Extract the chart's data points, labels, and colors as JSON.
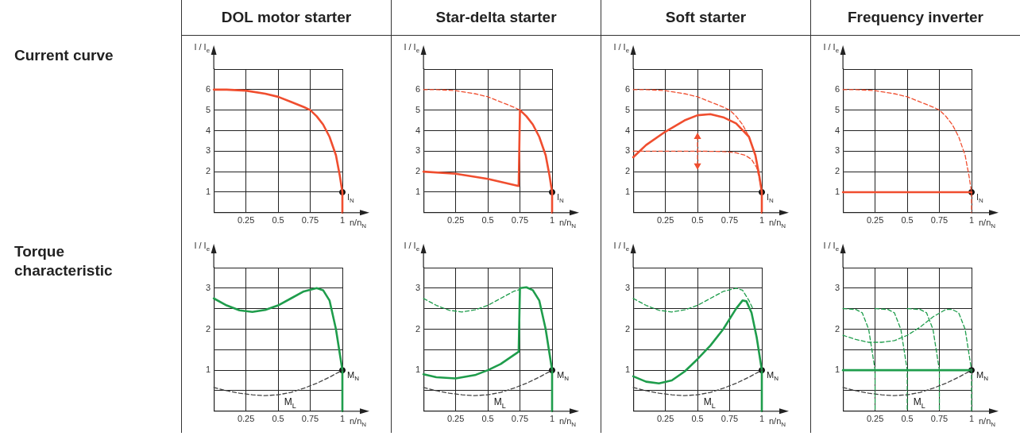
{
  "chart_data": [
    {
      "type": "other",
      "annotations": [
        "Current curve",
        "Torque characteristic"
      ]
    },
    {
      "type": "line",
      "title": "DOL motor starter",
      "xlabel": "n/n$_{N}$",
      "ylabel": "I / I$_{e}$",
      "xlim": [
        0,
        1
      ],
      "ylim": [
        0,
        7
      ],
      "xticks": [
        0.25,
        0.5,
        0.75,
        1
      ],
      "yticks": [
        1,
        2,
        3,
        4,
        5,
        6,
        {
          "value": 7,
          "label": null
        }
      ],
      "grid": true,
      "series": [
        {
          "color": "#f04e2f",
          "line_style": "solid",
          "x": [
            0,
            0.1,
            0.25,
            0.4,
            0.5,
            0.6,
            0.7,
            0.75,
            0.8,
            0.85,
            0.9,
            0.95,
            0.98,
            1,
            1
          ],
          "values": [
            6,
            6,
            5.95,
            5.8,
            5.65,
            5.4,
            5.15,
            5,
            4.7,
            4.3,
            3.7,
            2.8,
            1.8,
            1,
            0
          ]
        },
        {
          "type": "scatter",
          "name": "I$_{N}$",
          "color": "#111111",
          "marker": "circle",
          "x": [
            1
          ],
          "values": [
            1
          ]
        }
      ]
    },
    {
      "type": "line",
      "title": "Star-delta starter",
      "xlabel": "n/n$_{N}$",
      "ylabel": "I / I$_{e}$",
      "xlim": [
        0,
        1
      ],
      "ylim": [
        0,
        7
      ],
      "xticks": [
        0.25,
        0.5,
        0.75,
        1
      ],
      "yticks": [
        1,
        2,
        3,
        4,
        5,
        6,
        {
          "value": 7,
          "label": null
        }
      ],
      "grid": true,
      "series": [
        {
          "color": "#f04e2f",
          "line_style": "dashed",
          "x": [
            0,
            0.1,
            0.25,
            0.4,
            0.5,
            0.6,
            0.7,
            0.75
          ],
          "values": [
            6,
            6,
            5.95,
            5.8,
            5.65,
            5.4,
            5.15,
            5
          ]
        },
        {
          "color": "#f04e2f",
          "line_style": "solid",
          "x": [
            0,
            0.25,
            0.5,
            0.74,
            0.75,
            0.8,
            0.85,
            0.9,
            0.95,
            0.98,
            1,
            1
          ],
          "values": [
            2,
            1.9,
            1.65,
            1.3,
            5,
            4.7,
            4.3,
            3.7,
            2.8,
            1.8,
            1,
            0
          ]
        },
        {
          "type": "scatter",
          "name": "I$_{N}$",
          "color": "#111111",
          "marker": "circle",
          "x": [
            1
          ],
          "values": [
            1
          ]
        }
      ]
    },
    {
      "type": "line",
      "title": "Soft starter",
      "xlabel": "n/n$_{N}$",
      "ylabel": "I / I$_{e}$",
      "xlim": [
        0,
        1
      ],
      "ylim": [
        0,
        7
      ],
      "xticks": [
        0.25,
        0.5,
        0.75,
        1
      ],
      "yticks": [
        1,
        2,
        3,
        4,
        5,
        6,
        {
          "value": 7,
          "label": null
        }
      ],
      "grid": true,
      "series": [
        {
          "color": "#f04e2f",
          "line_style": "dashed",
          "x": [
            0,
            0.1,
            0.25,
            0.4,
            0.5,
            0.6,
            0.7,
            0.75,
            0.8,
            0.85,
            0.9,
            0.95,
            0.98,
            1,
            1
          ],
          "values": [
            6,
            6,
            5.95,
            5.8,
            5.65,
            5.4,
            5.15,
            5,
            4.7,
            4.3,
            3.7,
            2.8,
            1.8,
            1,
            0
          ]
        },
        {
          "color": "#f04e2f",
          "line_style": "dashed",
          "x": [
            0,
            0.25,
            0.5,
            0.7,
            0.8,
            0.87,
            0.92,
            0.96,
            0.99,
            1
          ],
          "values": [
            3,
            3,
            3,
            2.98,
            2.92,
            2.8,
            2.6,
            2.2,
            1.4,
            1
          ]
        },
        {
          "color": "#f04e2f",
          "line_style": "dashed",
          "marker": "triangle",
          "x": [
            0.5,
            0.5
          ],
          "values": [
            2.3,
            3.7
          ]
        },
        {
          "color": "#f04e2f",
          "line_style": "solid",
          "x": [
            0,
            0.1,
            0.25,
            0.4,
            0.5,
            0.6,
            0.7,
            0.8,
            0.9,
            0.95,
            0.98,
            1,
            1
          ],
          "values": [
            2.7,
            3.3,
            3.95,
            4.5,
            4.75,
            4.8,
            4.65,
            4.35,
            3.7,
            2.8,
            1.8,
            1,
            0
          ]
        },
        {
          "type": "scatter",
          "name": "I$_{N}$",
          "color": "#111111",
          "marker": "circle",
          "x": [
            1
          ],
          "values": [
            1
          ]
        }
      ]
    },
    {
      "type": "line",
      "title": "Frequency inverter",
      "xlabel": "n/n$_{N}$",
      "ylabel": "I / I$_{e}$",
      "xlim": [
        0,
        1
      ],
      "ylim": [
        0,
        7
      ],
      "xticks": [
        0.25,
        0.5,
        0.75,
        1
      ],
      "yticks": [
        1,
        2,
        3,
        4,
        5,
        6,
        {
          "value": 7,
          "label": null
        }
      ],
      "grid": true,
      "series": [
        {
          "color": "#f04e2f",
          "line_style": "dashed",
          "x": [
            0,
            0.1,
            0.25,
            0.4,
            0.5,
            0.6,
            0.7,
            0.75,
            0.8,
            0.85,
            0.9,
            0.95,
            0.98,
            1,
            1
          ],
          "values": [
            6,
            6,
            5.95,
            5.8,
            5.65,
            5.4,
            5.15,
            5,
            4.7,
            4.3,
            3.7,
            2.8,
            1.8,
            1,
            0
          ]
        },
        {
          "color": "#f04e2f",
          "line_style": "solid",
          "x": [
            0,
            0.25,
            0.5,
            0.75,
            1
          ],
          "values": [
            1,
            1,
            1,
            1,
            1
          ]
        },
        {
          "type": "scatter",
          "name": "I$_{N}$",
          "color": "#111111",
          "marker": "circle",
          "x": [
            1
          ],
          "values": [
            1
          ]
        }
      ]
    },
    {
      "type": "line",
      "xlabel": "n/n$_{N}$",
      "ylabel": "I / I$_{e}$",
      "xlim": [
        0,
        1
      ],
      "ylim": [
        0,
        3.5
      ],
      "xticks": [
        0.25,
        0.5,
        0.75,
        1
      ],
      "yticks": [
        {
          "value": 0.5,
          "label": null
        },
        1,
        {
          "value": 1.5,
          "label": null
        },
        2,
        {
          "value": 2.5,
          "label": null
        },
        3,
        {
          "value": 3.5,
          "label": null
        }
      ],
      "grid": true,
      "series": [
        {
          "name": "M$_{L}$",
          "color": "#444444",
          "line_style": "dashed",
          "x": [
            0,
            0.1,
            0.2,
            0.3,
            0.4,
            0.5,
            0.6,
            0.7,
            0.8,
            0.9,
            1
          ],
          "values": [
            0.58,
            0.5,
            0.44,
            0.4,
            0.38,
            0.4,
            0.46,
            0.56,
            0.68,
            0.83,
            1
          ]
        },
        {
          "color": "#1f9d4c",
          "line_style": "solid",
          "x": [
            0,
            0.1,
            0.2,
            0.3,
            0.4,
            0.5,
            0.6,
            0.7,
            0.8,
            0.85,
            0.9,
            0.95,
            0.98,
            1,
            1
          ],
          "values": [
            2.75,
            2.58,
            2.46,
            2.42,
            2.47,
            2.58,
            2.75,
            2.92,
            3,
            2.95,
            2.7,
            2,
            1.4,
            1,
            0
          ]
        },
        {
          "type": "scatter",
          "name": "M$_{N}$",
          "color": "#111111",
          "marker": "circle",
          "x": [
            1
          ],
          "values": [
            1
          ]
        }
      ]
    },
    {
      "type": "line",
      "xlabel": "n/n$_{N}$",
      "ylabel": "I / I$_{e}$",
      "xlim": [
        0,
        1
      ],
      "ylim": [
        0,
        3.5
      ],
      "xticks": [
        0.25,
        0.5,
        0.75,
        1
      ],
      "yticks": [
        {
          "value": 0.5,
          "label": null
        },
        1,
        {
          "value": 1.5,
          "label": null
        },
        2,
        {
          "value": 2.5,
          "label": null
        },
        3,
        {
          "value": 3.5,
          "label": null
        }
      ],
      "grid": true,
      "series": [
        {
          "name": "M$_{L}$",
          "color": "#444444",
          "line_style": "dashed",
          "x": [
            0,
            0.1,
            0.2,
            0.3,
            0.4,
            0.5,
            0.6,
            0.7,
            0.8,
            0.9,
            1
          ],
          "values": [
            0.58,
            0.5,
            0.44,
            0.4,
            0.38,
            0.4,
            0.46,
            0.56,
            0.68,
            0.83,
            1
          ]
        },
        {
          "color": "#1f9d4c",
          "line_style": "dashed",
          "x": [
            0,
            0.1,
            0.2,
            0.3,
            0.4,
            0.5,
            0.6,
            0.7,
            0.75
          ],
          "values": [
            2.75,
            2.58,
            2.46,
            2.42,
            2.47,
            2.58,
            2.75,
            2.92,
            2.97
          ]
        },
        {
          "color": "#1f9d4c",
          "line_style": "solid",
          "x": [
            0,
            0.1,
            0.25,
            0.4,
            0.5,
            0.6,
            0.74,
            0.75,
            0.8,
            0.85,
            0.9,
            0.95,
            0.98,
            1,
            1
          ],
          "values": [
            0.9,
            0.83,
            0.8,
            0.88,
            1,
            1.15,
            1.45,
            3,
            3.02,
            2.95,
            2.7,
            2,
            1.4,
            1,
            0
          ]
        },
        {
          "type": "scatter",
          "name": "M$_{N}$",
          "color": "#111111",
          "marker": "circle",
          "x": [
            1
          ],
          "values": [
            1
          ]
        }
      ]
    },
    {
      "type": "line",
      "xlabel": "n/n$_{N}$",
      "ylabel": "I / I$_{e}$",
      "xlim": [
        0,
        1
      ],
      "ylim": [
        0,
        3.5
      ],
      "xticks": [
        0.25,
        0.5,
        0.75,
        1
      ],
      "yticks": [
        {
          "value": 0.5,
          "label": null
        },
        1,
        {
          "value": 1.5,
          "label": null
        },
        2,
        {
          "value": 2.5,
          "label": null
        },
        3,
        {
          "value": 3.5,
          "label": null
        }
      ],
      "grid": true,
      "series": [
        {
          "name": "M$_{L}$",
          "color": "#444444",
          "line_style": "dashed",
          "x": [
            0,
            0.1,
            0.2,
            0.3,
            0.4,
            0.5,
            0.6,
            0.7,
            0.8,
            0.9,
            1
          ],
          "values": [
            0.58,
            0.5,
            0.44,
            0.4,
            0.38,
            0.4,
            0.46,
            0.56,
            0.68,
            0.83,
            1
          ]
        },
        {
          "color": "#1f9d4c",
          "line_style": "dashed",
          "x": [
            0,
            0.1,
            0.2,
            0.3,
            0.4,
            0.5,
            0.6,
            0.7,
            0.8,
            0.85,
            0.9,
            0.93
          ],
          "values": [
            2.75,
            2.58,
            2.46,
            2.42,
            2.47,
            2.58,
            2.75,
            2.92,
            3,
            2.95,
            2.7,
            2.5
          ]
        },
        {
          "color": "#1f9d4c",
          "line_style": "solid",
          "x": [
            0,
            0.1,
            0.2,
            0.3,
            0.4,
            0.5,
            0.6,
            0.7,
            0.8,
            0.85,
            0.88,
            0.92,
            0.96,
            1,
            1
          ],
          "values": [
            0.85,
            0.72,
            0.68,
            0.75,
            0.97,
            1.27,
            1.6,
            2,
            2.5,
            2.7,
            2.68,
            2.4,
            1.8,
            1,
            0
          ]
        },
        {
          "type": "scatter",
          "name": "M$_{N}$",
          "color": "#111111",
          "marker": "circle",
          "x": [
            1
          ],
          "values": [
            1
          ]
        }
      ]
    },
    {
      "type": "line",
      "xlabel": "n/n$_{N}$",
      "ylabel": "I / I$_{e}$",
      "xlim": [
        0,
        1
      ],
      "ylim": [
        0,
        3.5
      ],
      "xticks": [
        0.25,
        0.5,
        0.75,
        1
      ],
      "yticks": [
        {
          "value": 0.5,
          "label": null
        },
        1,
        {
          "value": 1.5,
          "label": null
        },
        2,
        {
          "value": 2.5,
          "label": null
        },
        3,
        {
          "value": 3.5,
          "label": null
        }
      ],
      "grid": true,
      "series": [
        {
          "name": "M$_{L}$",
          "color": "#444444",
          "line_style": "dashed",
          "x": [
            0,
            0.1,
            0.2,
            0.3,
            0.4,
            0.5,
            0.6,
            0.7,
            0.8,
            0.9,
            1
          ],
          "values": [
            0.58,
            0.5,
            0.44,
            0.4,
            0.38,
            0.4,
            0.46,
            0.56,
            0.68,
            0.83,
            1
          ]
        },
        {
          "color": "#1f9d4c",
          "line_style": "dashed",
          "x": [
            0,
            0.1,
            0.15,
            0.2,
            0.23,
            0.25,
            0.25
          ],
          "values": [
            2.5,
            2.48,
            2.4,
            2,
            1.4,
            1,
            0
          ]
        },
        {
          "color": "#1f9d4c",
          "line_style": "dashed",
          "x": [
            0.25,
            0.35,
            0.4,
            0.45,
            0.48,
            0.5,
            0.5
          ],
          "values": [
            2.5,
            2.48,
            2.4,
            2,
            1.4,
            1,
            0
          ]
        },
        {
          "color": "#1f9d4c",
          "line_style": "dashed",
          "x": [
            0.5,
            0.6,
            0.65,
            0.7,
            0.73,
            0.75,
            0.75
          ],
          "values": [
            2.5,
            2.48,
            2.4,
            2,
            1.4,
            1,
            0
          ]
        },
        {
          "color": "#1f9d4c",
          "line_style": "dashed",
          "x": [
            0,
            0.1,
            0.2,
            0.3,
            0.4,
            0.5,
            0.6,
            0.7,
            0.8,
            0.85,
            0.9,
            0.95,
            0.98,
            1,
            1
          ],
          "values": [
            1.85,
            1.75,
            1.68,
            1.68,
            1.72,
            1.85,
            2.05,
            2.3,
            2.48,
            2.48,
            2.4,
            2,
            1.4,
            1,
            0
          ]
        },
        {
          "color": "#1f9d4c",
          "line_style": "solid",
          "x": [
            0,
            0.25,
            0.5,
            0.75,
            1
          ],
          "values": [
            1,
            1,
            1,
            1,
            1
          ]
        },
        {
          "type": "scatter",
          "name": "M$_{N}$",
          "color": "#111111",
          "marker": "circle",
          "x": [
            1
          ],
          "values": [
            1
          ]
        }
      ]
    }
  ]
}
